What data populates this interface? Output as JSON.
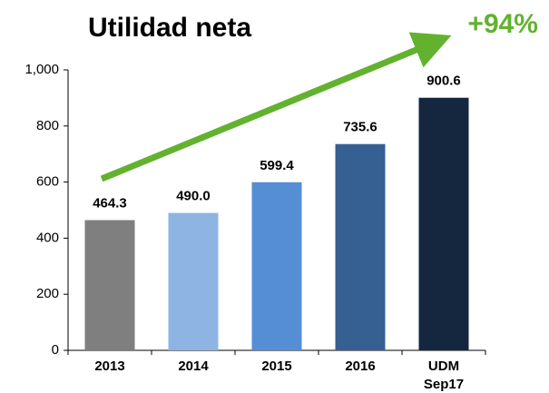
{
  "chart_data": {
    "type": "bar",
    "title": "Utilidad neta",
    "annotation": "+94%",
    "categories": [
      "2013",
      "2014",
      "2015",
      "2016",
      [
        "UDM",
        "Sep17"
      ]
    ],
    "values": [
      464.3,
      490.0,
      599.4,
      735.6,
      900.6
    ],
    "value_labels": [
      "464.3",
      "490.0",
      "599.4",
      "735.6",
      "900.6"
    ],
    "colors": [
      "#7f7f7f",
      "#8eb4e3",
      "#558ed5",
      "#376092",
      "#14273f"
    ],
    "ylim": [
      0,
      1000
    ],
    "yticks": [
      0,
      200,
      400,
      600,
      800,
      {
        "value": 1000,
        "label": "1,000"
      }
    ],
    "grid": false
  }
}
